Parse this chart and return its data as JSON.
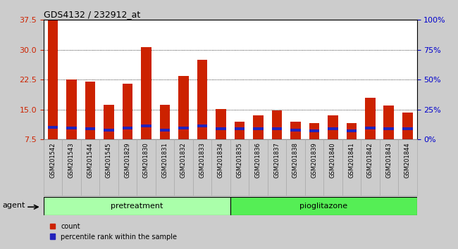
{
  "title": "GDS4132 / 232912_at",
  "categories": [
    "GSM201542",
    "GSM201543",
    "GSM201544",
    "GSM201545",
    "GSM201829",
    "GSM201830",
    "GSM201831",
    "GSM201832",
    "GSM201833",
    "GSM201834",
    "GSM201835",
    "GSM201836",
    "GSM201837",
    "GSM201838",
    "GSM201839",
    "GSM201840",
    "GSM201841",
    "GSM201842",
    "GSM201843",
    "GSM201844"
  ],
  "count_values": [
    37.3,
    22.5,
    22.0,
    16.2,
    21.5,
    30.7,
    16.2,
    23.5,
    27.5,
    15.1,
    12.0,
    13.5,
    14.7,
    12.0,
    11.6,
    13.5,
    11.6,
    18.0,
    16.0,
    14.2
  ],
  "blue_segment_bottom": [
    10.2,
    10.0,
    9.8,
    9.5,
    10.0,
    10.5,
    9.5,
    10.0,
    10.5,
    9.8,
    9.8,
    9.8,
    9.8,
    9.5,
    9.3,
    9.8,
    9.3,
    10.0,
    9.8,
    9.8
  ],
  "blue_segment_height": [
    0.7,
    0.7,
    0.7,
    0.7,
    0.7,
    0.7,
    0.7,
    0.7,
    0.7,
    0.7,
    0.7,
    0.7,
    0.7,
    0.7,
    0.7,
    0.7,
    0.7,
    0.7,
    0.7,
    0.7
  ],
  "bar_color": "#cc2200",
  "blue_color": "#2222bb",
  "ylim_left": [
    7.5,
    37.5
  ],
  "yticks_left": [
    7.5,
    15.0,
    22.5,
    30.0,
    37.5
  ],
  "ylim_right": [
    0,
    100
  ],
  "yticks_right": [
    0,
    25,
    50,
    75,
    100
  ],
  "yticklabels_right": [
    "0%",
    "25%",
    "50%",
    "75%",
    "100%"
  ],
  "grid_color": "black",
  "bar_width": 0.55,
  "group1_label": "pretreatment",
  "group2_label": "pioglitazone",
  "agent_label": "agent",
  "legend_count_label": "count",
  "legend_pct_label": "percentile rank within the sample",
  "bg_color": "#cccccc",
  "plot_bg": "#ffffff",
  "group_bg1": "#aaffaa",
  "group_bg2": "#55ee55",
  "title_color": "#000000",
  "tick_color_left": "#cc2200",
  "tick_color_right": "#0000cc",
  "xticklabel_bg": "#cccccc",
  "n_pretreatment": 10,
  "n_pioglitazone": 10
}
